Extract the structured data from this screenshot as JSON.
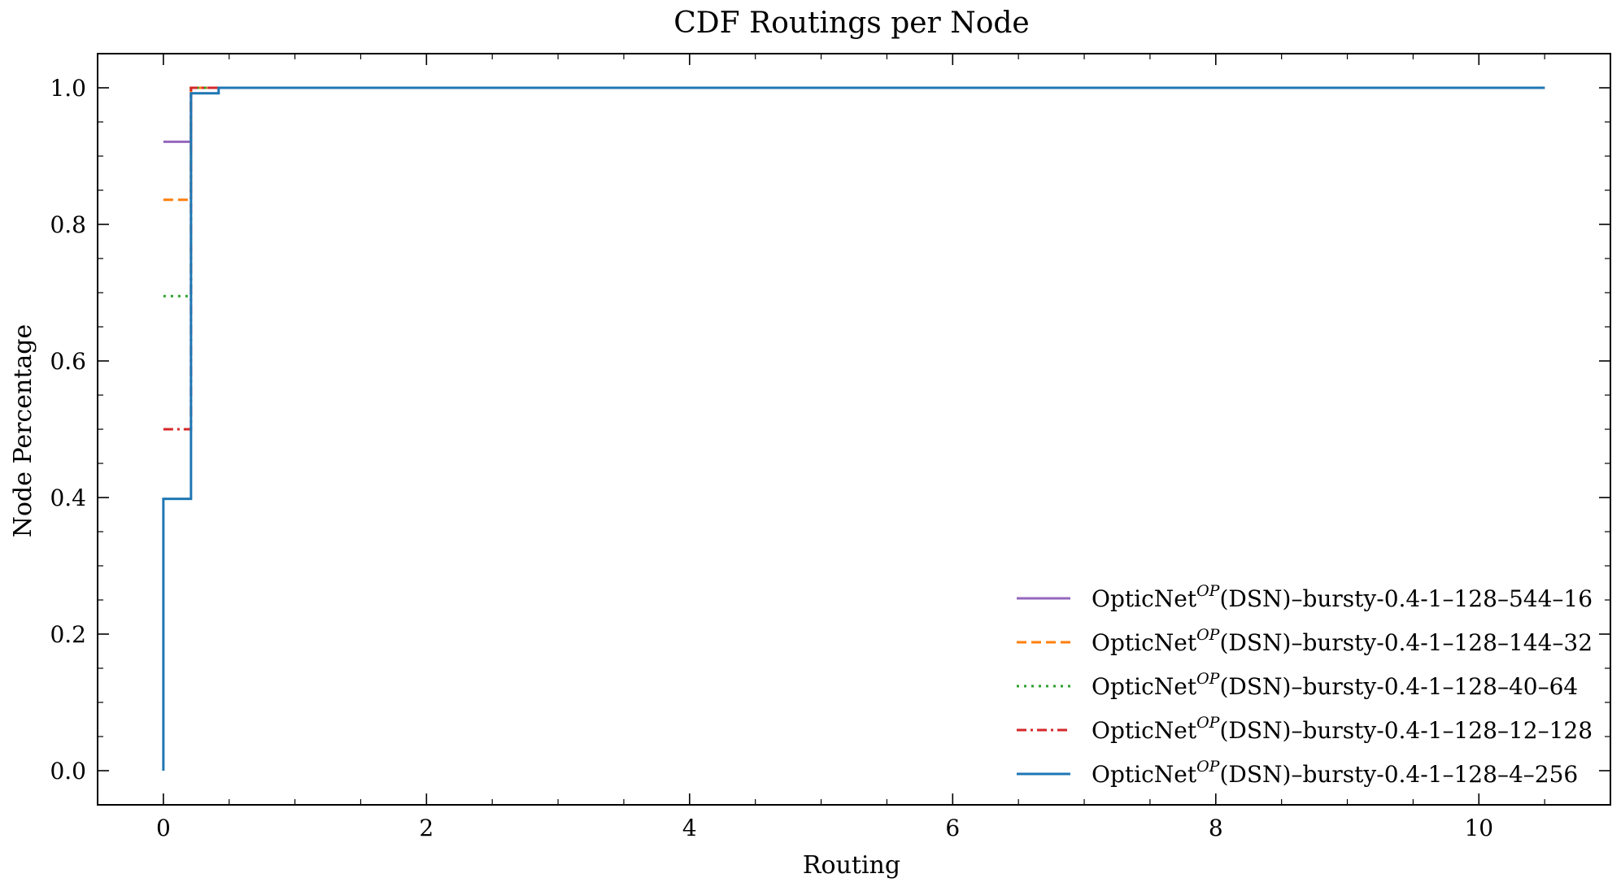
{
  "chart_data": {
    "type": "line",
    "title": "CDF Routings per Node",
    "xlabel": "Routing",
    "ylabel": "Node Percentage",
    "xlim": [
      -0.5,
      11.0
    ],
    "ylim": [
      -0.05,
      1.05
    ],
    "xticks": [
      0,
      2,
      4,
      6,
      8,
      10
    ],
    "yticks": [
      0.0,
      0.2,
      0.4,
      0.6,
      0.8,
      1.0
    ],
    "xtick_labels": [
      "0",
      "2",
      "4",
      "6",
      "8",
      "10"
    ],
    "ytick_labels": [
      "0.0",
      "0.2",
      "0.4",
      "0.6",
      "0.8",
      "1.0"
    ],
    "x_minor_step": 0.5,
    "y_minor_step": 0.05,
    "step": "post",
    "grid": false,
    "legend_position": "lower-right",
    "series": [
      {
        "name_prefix": "OpticNet",
        "name_sup": "OP",
        "name_suffix": "(DSN)–bursty-0.4-1–128–544–16",
        "color": "#9467bd",
        "dash": "solid",
        "x": [
          0.0,
          0.21,
          10.5
        ],
        "y": [
          0.921,
          1.0,
          1.0
        ]
      },
      {
        "name_prefix": "OpticNet",
        "name_sup": "OP",
        "name_suffix": "(DSN)–bursty-0.4-1–128–144–32",
        "color": "#ff7f0e",
        "dash": "dashed",
        "x": [
          0.0,
          0.21,
          10.5
        ],
        "y": [
          0.836,
          1.0,
          1.0
        ]
      },
      {
        "name_prefix": "OpticNet",
        "name_sup": "OP",
        "name_suffix": "(DSN)–bursty-0.4-1–128–40–64",
        "color": "#2ca02c",
        "dash": "dotted",
        "x": [
          0.0,
          0.21,
          10.5
        ],
        "y": [
          0.695,
          1.0,
          1.0
        ]
      },
      {
        "name_prefix": "OpticNet",
        "name_sup": "OP",
        "name_suffix": "(DSN)–bursty-0.4-1–128–12–128",
        "color": "#d62728",
        "dash": "dashdot",
        "x": [
          0.0,
          0.21,
          0.42,
          10.5
        ],
        "y": [
          0.5,
          1.0,
          1.0,
          1.0
        ]
      },
      {
        "name_prefix": "OpticNet",
        "name_sup": "OP",
        "name_suffix": "(DSN)–bursty-0.4-1–128–4–256",
        "color": "#1f77b4",
        "dash": "solid",
        "x": [
          0.0,
          0.0,
          0.21,
          0.42,
          10.5
        ],
        "y": [
          0.0,
          0.398,
          0.992,
          1.0,
          1.0
        ]
      }
    ]
  }
}
